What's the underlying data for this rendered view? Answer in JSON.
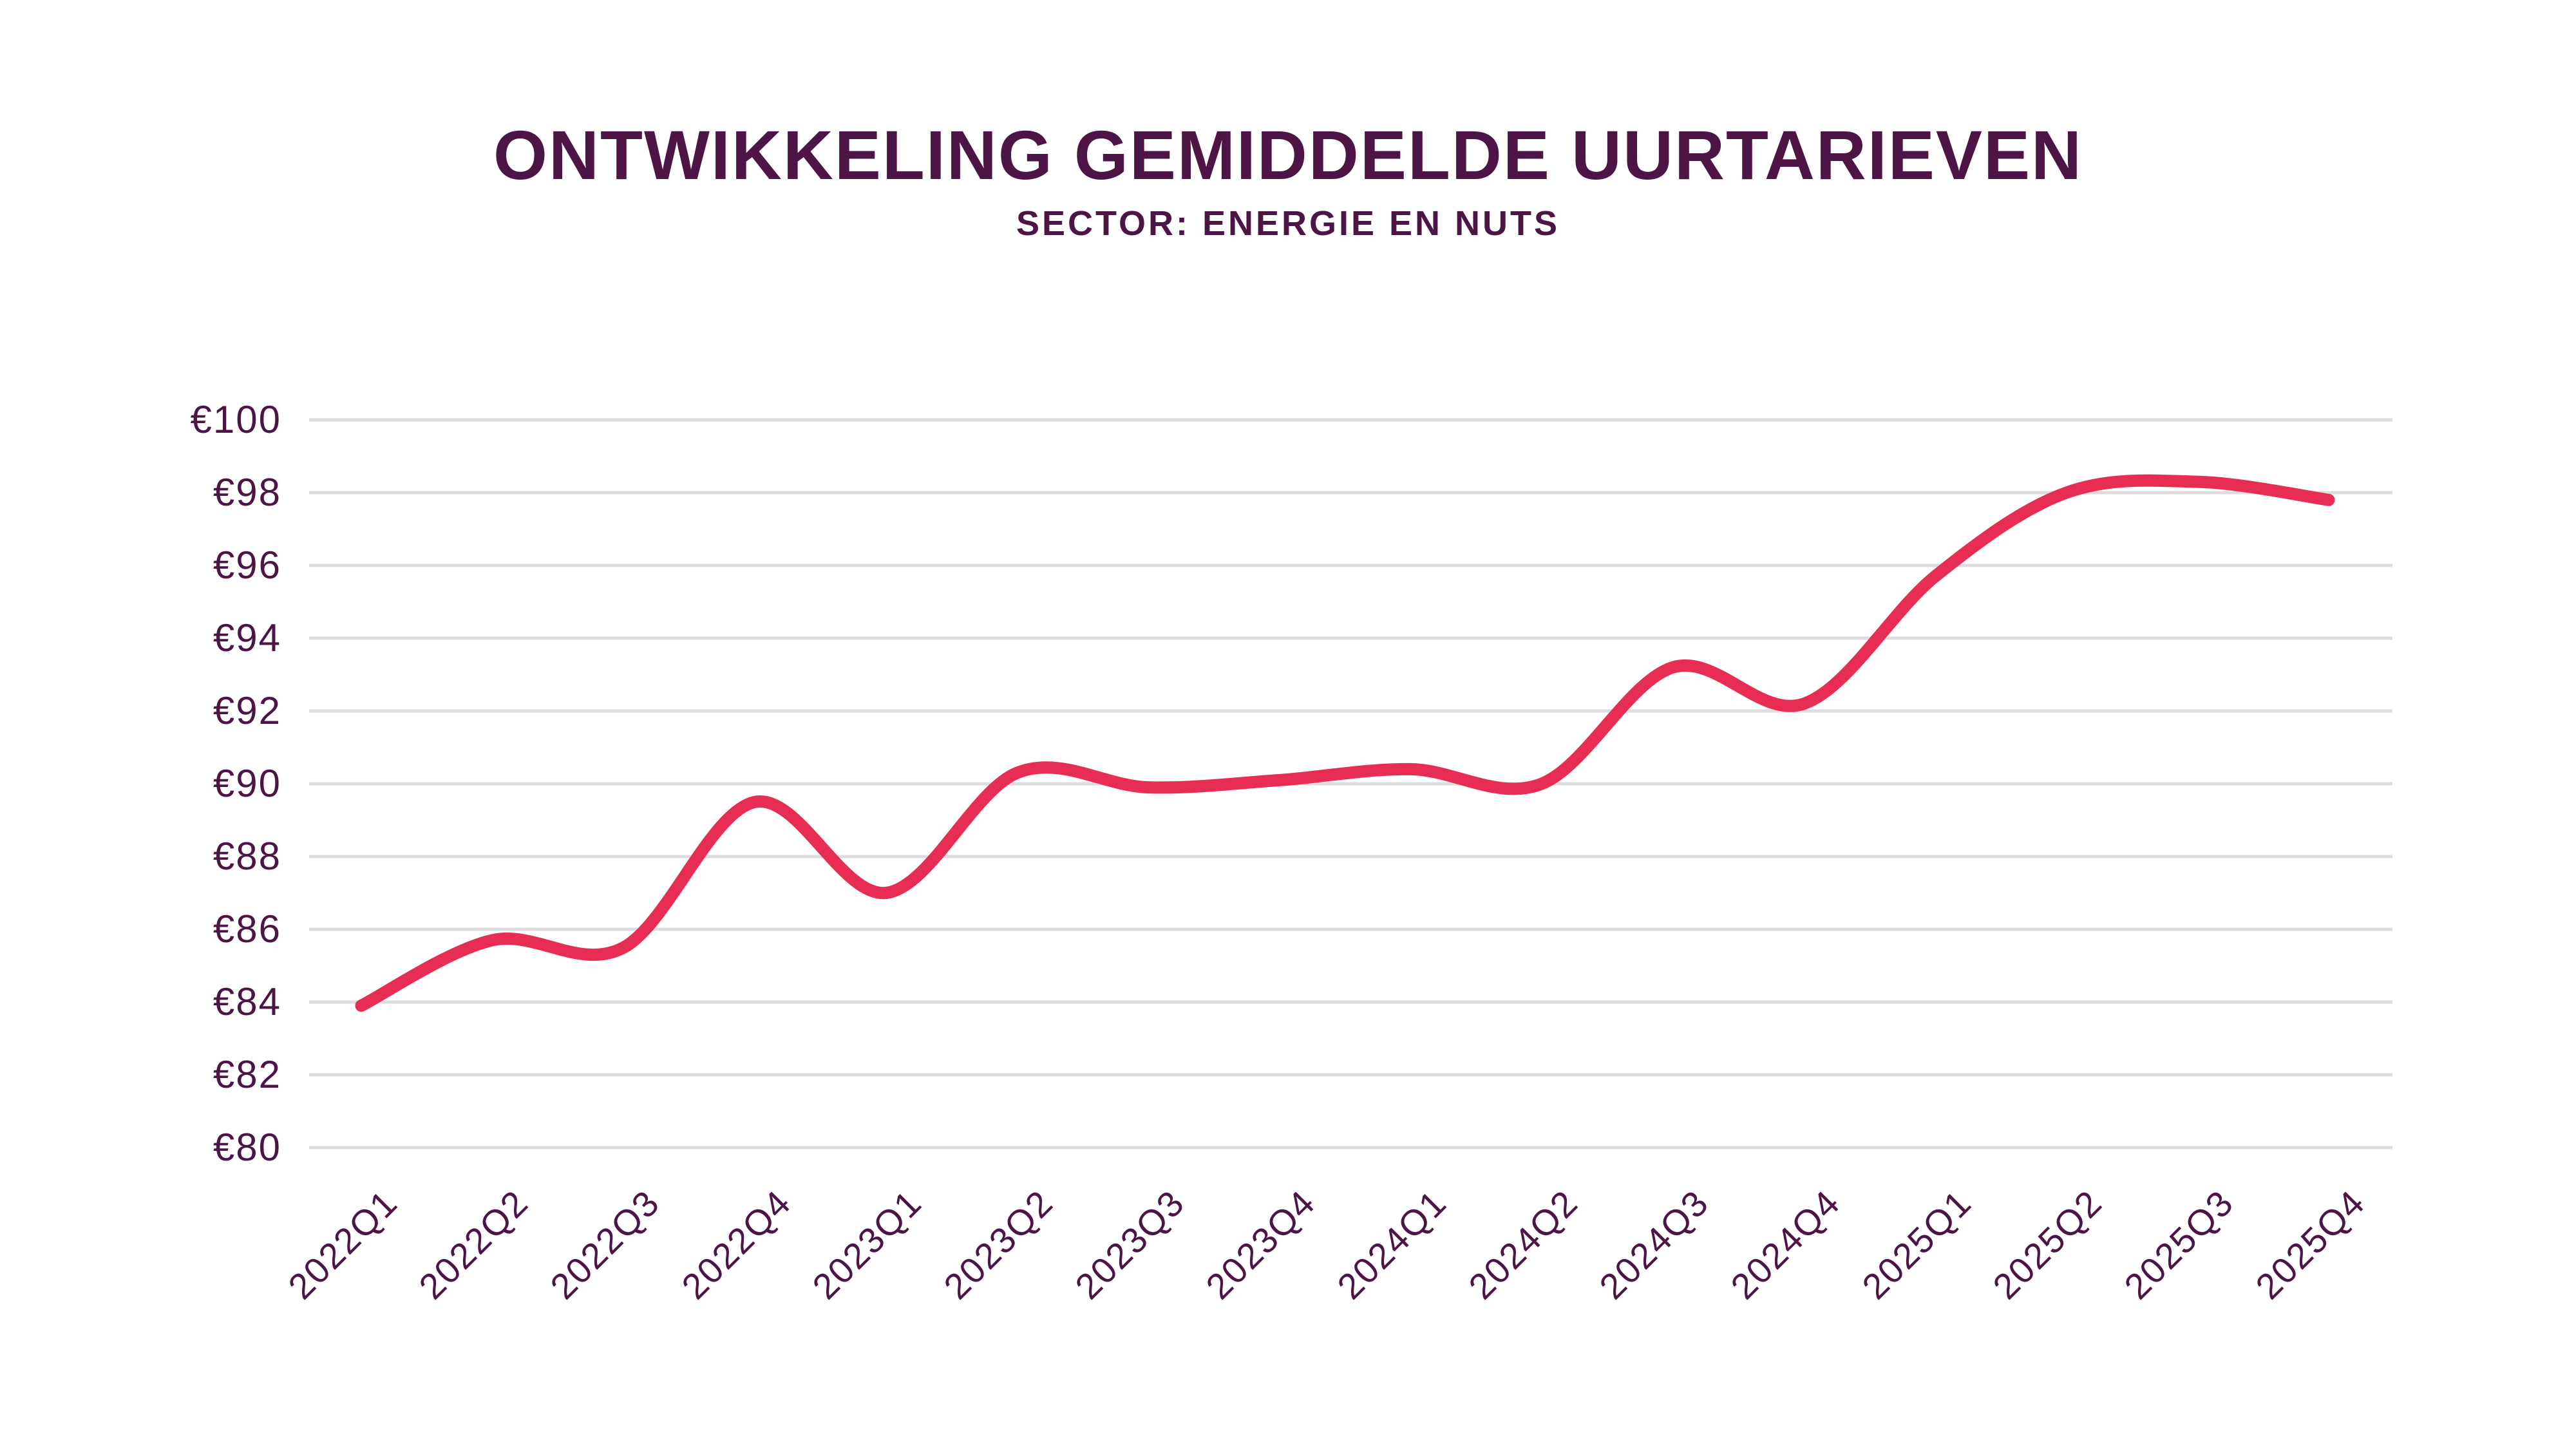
{
  "header": {
    "title": "ONTWIKKELING GEMIDDELDE UURTARIEVEN",
    "subtitle": "SECTOR: ENERGIE EN NUTS"
  },
  "chart_data": {
    "type": "line",
    "title": "ONTWIKKELING GEMIDDELDE UURTARIEVEN",
    "subtitle": "SECTOR: ENERGIE EN NUTS",
    "categories": [
      "2022Q1",
      "2022Q2",
      "2022Q3",
      "2022Q4",
      "2023Q1",
      "2023Q2",
      "2023Q3",
      "2023Q4",
      "2024Q1",
      "2024Q2",
      "2024Q3",
      "2024Q4",
      "2025Q1",
      "2025Q2",
      "2025Q3",
      "2025Q4"
    ],
    "values": [
      83.9,
      85.7,
      85.5,
      89.5,
      87.0,
      90.3,
      89.9,
      90.1,
      90.4,
      90.0,
      93.2,
      92.2,
      95.7,
      98.0,
      98.3,
      97.8
    ],
    "ylim": [
      80,
      100
    ],
    "ytick_step": 2,
    "ytick_labels": [
      "€80",
      "€82",
      "€84",
      "€86",
      "€88",
      "€90",
      "€92",
      "€94",
      "€96",
      "€98",
      "€100"
    ],
    "currency_prefix": "€",
    "grid": "horizontal-only",
    "legend": "none",
    "line_smoothing": "catmull-rom"
  },
  "colors": {
    "line": "#e82d52",
    "text": "#4d1545",
    "grid": "#dcdcdc",
    "background": "#ffffff"
  }
}
